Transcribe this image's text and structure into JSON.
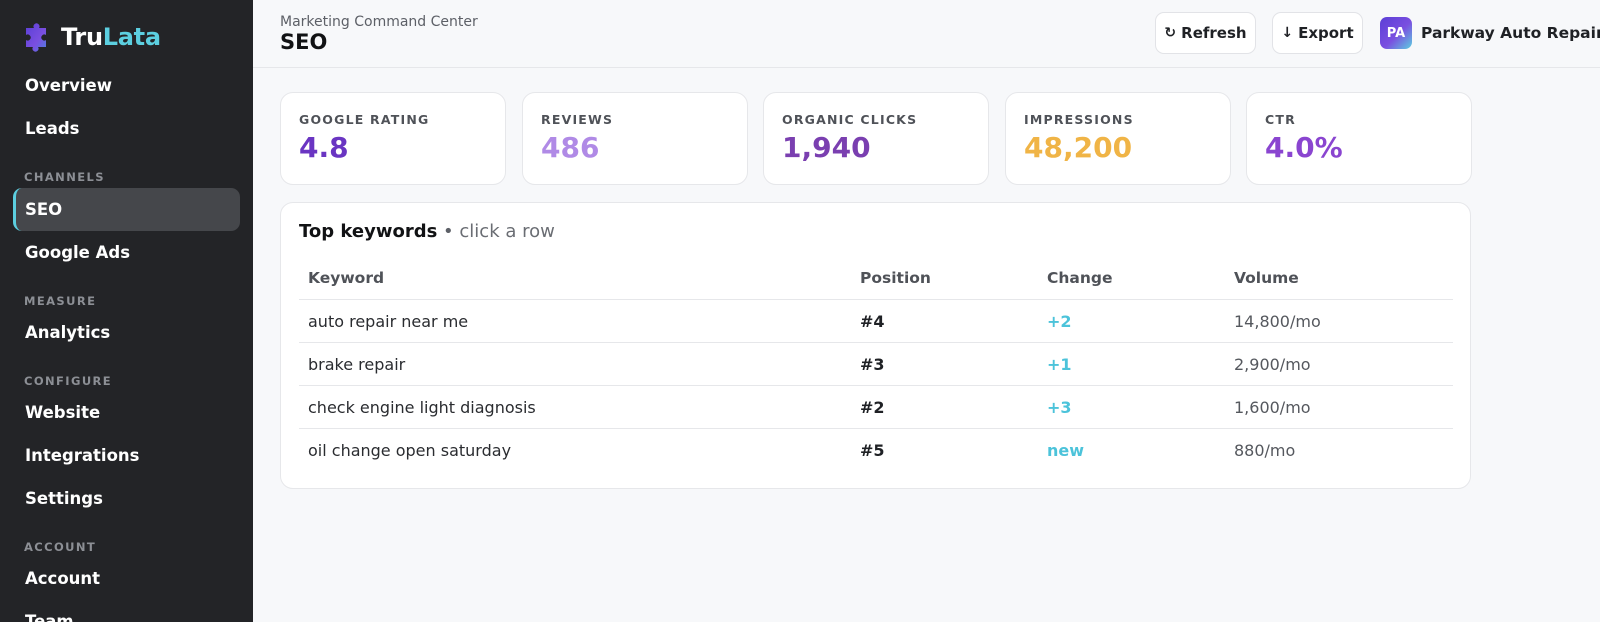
{
  "brand": {
    "name_part1": "Tru",
    "name_part2": "Lata",
    "logo_icon": "puzzle-logo-icon"
  },
  "sidebar": {
    "items": [
      {
        "label": "Overview"
      },
      {
        "label": "Leads"
      },
      {
        "section": "CHANNELS"
      },
      {
        "label": "SEO",
        "active": true
      },
      {
        "label": "Google Ads"
      },
      {
        "section": "MEASURE"
      },
      {
        "label": "Analytics"
      },
      {
        "section": "CONFIGURE"
      },
      {
        "label": "Website"
      },
      {
        "label": "Integrations"
      },
      {
        "label": "Settings"
      },
      {
        "section": "ACCOUNT"
      },
      {
        "label": "Account"
      },
      {
        "label": "Team"
      }
    ]
  },
  "header": {
    "breadcrumb": "Marketing Command Center",
    "title": "SEO",
    "refresh_label": "Refresh",
    "refresh_icon": "refresh-icon",
    "export_label": "Export",
    "export_icon": "arrow-down-icon",
    "account_initials": "PA",
    "account_name": "Parkway Auto Repair"
  },
  "kpis": [
    {
      "label": "GOOGLE RATING",
      "value": "4.8",
      "color": "#6a35c2"
    },
    {
      "label": "REVIEWS",
      "value": "486",
      "color": "#b08ae6"
    },
    {
      "label": "ORGANIC CLICKS",
      "value": "1,940",
      "color": "#7a3fb0"
    },
    {
      "label": "IMPRESSIONS",
      "value": "48,200",
      "color": "#f0b446"
    },
    {
      "label": "CTR",
      "value": "4.0%",
      "color": "#8a45d0"
    }
  ],
  "keywords": {
    "title": "Top keywords",
    "separator": "•",
    "hint": "click a row",
    "columns": [
      "Keyword",
      "Position",
      "Change",
      "Volume"
    ],
    "rows": [
      {
        "keyword": "auto repair near me",
        "position": "#4",
        "change": "+2",
        "volume": "14,800/mo"
      },
      {
        "keyword": "brake repair",
        "position": "#3",
        "change": "+1",
        "volume": "2,900/mo"
      },
      {
        "keyword": "check engine light diagnosis",
        "position": "#2",
        "change": "+3",
        "volume": "1,600/mo"
      },
      {
        "keyword": "oil change open saturday",
        "position": "#5",
        "change": "new",
        "volume": "880/mo"
      }
    ]
  },
  "colors": {
    "accent": "#5ccfe0",
    "sidebar_bg": "#232427",
    "change_positive": "#4cc3da"
  }
}
